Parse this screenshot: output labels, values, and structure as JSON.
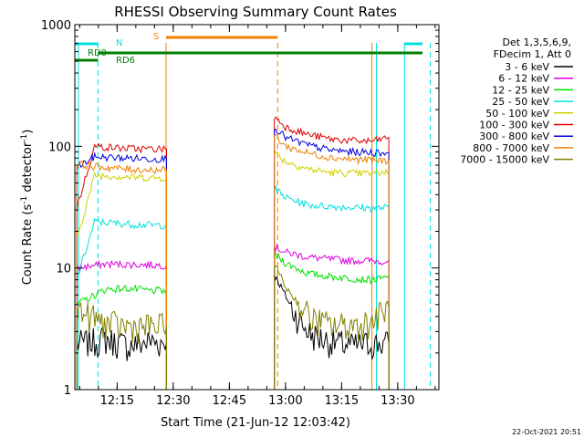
{
  "chart_data": {
    "type": "line",
    "title": "RHESSI Observing Summary Count Rates",
    "xlabel": "Start Time (21-Jun-12 12:03:42)",
    "ylabel_main": "Count Rate (s",
    "ylabel_sup1": "-1",
    "ylabel_mid": " detector",
    "ylabel_sup2": "-1",
    "ylabel_end": ")",
    "y_scale": "log",
    "ylim": [
      1,
      1000
    ],
    "xlim": [
      "12:03:42",
      "13:41:00"
    ],
    "x_ticks": [
      "12:15",
      "12:30",
      "12:45",
      "13:00",
      "13:15",
      "13:30"
    ],
    "y_ticks": [
      "1",
      "10",
      "100",
      "1000"
    ],
    "legend": {
      "header1": "Det 1,3,5,6,9,",
      "header2": "FDecim 1, Att 0",
      "placement": "right"
    },
    "series": [
      {
        "name": "3 - 6 keV",
        "color": "#000000",
        "seg1": [
          [
            12.07,
            2.4
          ],
          [
            12.2,
            2.6
          ],
          [
            12.3,
            2.3
          ],
          [
            12.4,
            2.5
          ],
          [
            12.47,
            2.4
          ]
        ],
        "seg2": [
          [
            12.95,
            9.0
          ],
          [
            12.98,
            7.0
          ],
          [
            13.02,
            5.0
          ],
          [
            13.07,
            3.5
          ],
          [
            13.12,
            2.8
          ],
          [
            13.2,
            2.5
          ],
          [
            13.3,
            2.3
          ],
          [
            13.38,
            2.4
          ],
          [
            13.46,
            2.4
          ]
        ]
      },
      {
        "name": "6 - 12 keV",
        "color": "#e000e0",
        "seg1": [
          [
            12.07,
            10.0
          ],
          [
            12.2,
            10.8
          ],
          [
            12.3,
            10.7
          ],
          [
            12.4,
            10.6
          ],
          [
            12.47,
            10.5
          ]
        ],
        "seg2": [
          [
            12.95,
            15.0
          ],
          [
            13.0,
            13.5
          ],
          [
            13.1,
            12.3
          ],
          [
            13.2,
            11.8
          ],
          [
            13.3,
            11.5
          ],
          [
            13.38,
            11.5
          ],
          [
            13.46,
            11.3
          ]
        ]
      },
      {
        "name": "12 - 25 keV",
        "color": "#00e000",
        "seg1": [
          [
            12.07,
            5.0
          ],
          [
            12.2,
            6.7
          ],
          [
            12.3,
            6.8
          ],
          [
            12.4,
            6.5
          ],
          [
            12.47,
            6.5
          ]
        ],
        "seg2": [
          [
            12.95,
            13.0
          ],
          [
            13.0,
            11.0
          ],
          [
            13.1,
            9.0
          ],
          [
            13.2,
            8.5
          ],
          [
            13.3,
            8.2
          ],
          [
            13.38,
            8.0
          ],
          [
            13.46,
            8.3
          ]
        ]
      },
      {
        "name": "25 - 50 keV",
        "color": "#00e0e0",
        "seg1": [
          [
            12.07,
            8.0
          ],
          [
            12.15,
            24.0
          ],
          [
            12.3,
            23.0
          ],
          [
            12.4,
            22.5
          ],
          [
            12.47,
            22.5
          ]
        ],
        "seg2": [
          [
            12.95,
            45.0
          ],
          [
            13.0,
            38.0
          ],
          [
            13.1,
            33.0
          ],
          [
            13.2,
            32.0
          ],
          [
            13.3,
            31.5
          ],
          [
            13.38,
            31.0
          ],
          [
            13.46,
            31.5
          ]
        ]
      },
      {
        "name": "50 - 100 keV",
        "color": "#d0d000",
        "seg1": [
          [
            12.07,
            17.0
          ],
          [
            12.15,
            58.0
          ],
          [
            12.3,
            56.0
          ],
          [
            12.4,
            55.0
          ],
          [
            12.47,
            55.0
          ]
        ],
        "seg2": [
          [
            12.95,
            90.0
          ],
          [
            13.0,
            75.0
          ],
          [
            13.1,
            65.0
          ],
          [
            13.2,
            61.0
          ],
          [
            13.3,
            60.0
          ],
          [
            13.38,
            60.0
          ],
          [
            13.46,
            62.0
          ]
        ]
      },
      {
        "name": "100 - 300 keV",
        "color": "#e00000",
        "seg1": [
          [
            12.07,
            31.0
          ],
          [
            12.15,
            100.0
          ],
          [
            12.3,
            96.0
          ],
          [
            12.4,
            95.0
          ],
          [
            12.47,
            95.0
          ]
        ],
        "seg2": [
          [
            12.95,
            175.0
          ],
          [
            13.0,
            145.0
          ],
          [
            13.1,
            125.0
          ],
          [
            13.2,
            115.0
          ],
          [
            13.3,
            111.0
          ],
          [
            13.38,
            110.0
          ],
          [
            13.46,
            118.0
          ]
        ]
      },
      {
        "name": "300 - 800 keV",
        "color": "#0000e0",
        "seg1": [
          [
            12.07,
            67.0
          ],
          [
            12.15,
            82.0
          ],
          [
            12.3,
            80.0
          ],
          [
            12.4,
            79.0
          ],
          [
            12.47,
            79.0
          ]
        ],
        "seg2": [
          [
            12.95,
            145.0
          ],
          [
            13.0,
            118.0
          ],
          [
            13.1,
            102.0
          ],
          [
            13.2,
            93.0
          ],
          [
            13.3,
            90.0
          ],
          [
            13.38,
            89.0
          ],
          [
            13.46,
            88.0
          ]
        ]
      },
      {
        "name": "800 - 7000 keV",
        "color": "#f08000",
        "seg1": [
          [
            12.07,
            72.0
          ],
          [
            12.15,
            68.0
          ],
          [
            12.3,
            65.0
          ],
          [
            12.4,
            64.0
          ],
          [
            12.47,
            64.0
          ]
        ],
        "seg2": [
          [
            12.95,
            125.0
          ],
          [
            13.0,
            100.0
          ],
          [
            13.1,
            88.0
          ],
          [
            13.2,
            81.0
          ],
          [
            13.3,
            78.0
          ],
          [
            13.38,
            77.0
          ],
          [
            13.46,
            76.0
          ]
        ]
      },
      {
        "name": "7000 - 15000 keV",
        "color": "#808000",
        "seg1": [
          [
            12.07,
            4.5
          ],
          [
            12.2,
            3.5
          ],
          [
            12.3,
            3.3
          ],
          [
            12.4,
            3.3
          ],
          [
            12.47,
            3.3
          ]
        ],
        "seg2": [
          [
            12.95,
            11.0
          ],
          [
            13.0,
            7.0
          ],
          [
            13.07,
            4.8
          ],
          [
            13.12,
            3.8
          ],
          [
            13.2,
            3.4
          ],
          [
            13.3,
            3.4
          ],
          [
            13.38,
            3.6
          ],
          [
            13.46,
            4.8
          ]
        ]
      }
    ],
    "flags": [
      {
        "label": "RD0",
        "color": "#008000"
      },
      {
        "label": "RD6",
        "color": "#008000"
      },
      {
        "label": "N",
        "color": "#00e0e0"
      },
      {
        "label": "S",
        "color": "#f08000"
      }
    ]
  },
  "timestamp": "22-Oct-2021 20:51"
}
